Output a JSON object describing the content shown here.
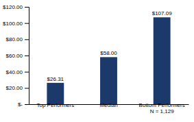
{
  "chart_data": {
    "type": "bar",
    "categories": [
      "Top Performers",
      "Median",
      "Bottom Performers\nN = 1,129"
    ],
    "values": [
      26.31,
      58.0,
      107.09
    ],
    "value_labels": [
      "$26.31",
      "$58.00",
      "$107.09"
    ],
    "data_labels": true,
    "color": "#1B3A6B",
    "ylim": [
      0,
      120
    ],
    "yticks": [
      {
        "value": 0,
        "label": "$-"
      },
      {
        "value": 20,
        "label": "$20.00"
      },
      {
        "value": 40,
        "label": "$40.00"
      },
      {
        "value": 60,
        "label": "$60.00"
      },
      {
        "value": 80,
        "label": "$80.00"
      },
      {
        "value": 100,
        "label": "$100.00"
      },
      {
        "value": 120,
        "label": "$120.00"
      }
    ],
    "grid": false
  }
}
